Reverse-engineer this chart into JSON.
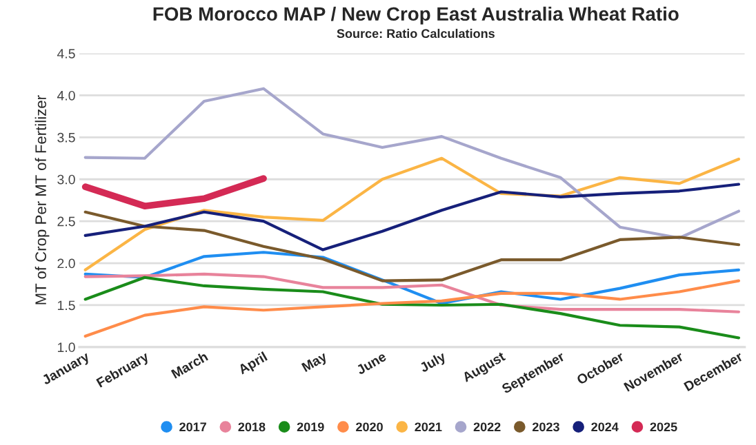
{
  "chart_data": {
    "type": "line",
    "title": "FOB Morocco MAP / New Crop East Australia Wheat Ratio",
    "subtitle": "Source: Ratio Calculations",
    "ylabel": "MT of Crop Per MT of Fertilizer",
    "categories": [
      "January",
      "February",
      "March",
      "April",
      "May",
      "June",
      "July",
      "August",
      "September",
      "October",
      "November",
      "December"
    ],
    "series": [
      {
        "name": "2017",
        "color": "#1f8ef1",
        "values": [
          1.87,
          1.83,
          2.08,
          2.13,
          2.07,
          1.8,
          1.52,
          1.66,
          1.57,
          1.7,
          1.86,
          1.92
        ]
      },
      {
        "name": "2018",
        "color": "#e8839b",
        "values": [
          1.84,
          1.85,
          1.87,
          1.84,
          1.71,
          1.71,
          1.74,
          1.5,
          1.45,
          1.45,
          1.45,
          1.42
        ]
      },
      {
        "name": "2019",
        "color": "#1a8c1a",
        "values": [
          1.57,
          1.83,
          1.73,
          1.69,
          1.66,
          1.51,
          1.5,
          1.51,
          1.4,
          1.26,
          1.24,
          1.11
        ]
      },
      {
        "name": "2020",
        "color": "#ff8c4a",
        "values": [
          1.13,
          1.38,
          1.48,
          1.44,
          1.48,
          1.52,
          1.55,
          1.64,
          1.64,
          1.57,
          1.66,
          1.79
        ]
      },
      {
        "name": "2021",
        "color": "#fbb545",
        "values": [
          1.92,
          2.4,
          2.63,
          2.55,
          2.51,
          3.0,
          3.25,
          2.83,
          2.8,
          3.02,
          2.95,
          3.24
        ]
      },
      {
        "name": "2022",
        "color": "#a6a6cc",
        "values": [
          3.26,
          3.25,
          3.93,
          4.08,
          3.54,
          3.38,
          3.51,
          3.25,
          3.02,
          2.43,
          2.3,
          2.62
        ]
      },
      {
        "name": "2023",
        "color": "#7a5a2c",
        "values": [
          2.61,
          2.44,
          2.39,
          2.2,
          2.05,
          1.79,
          1.8,
          2.04,
          2.04,
          2.28,
          2.31,
          2.22
        ]
      },
      {
        "name": "2024",
        "color": "#16207a",
        "values": [
          2.33,
          2.44,
          2.61,
          2.5,
          2.16,
          2.38,
          2.63,
          2.85,
          2.79,
          2.83,
          2.86,
          2.94
        ]
      },
      {
        "name": "2025",
        "color": "#d42a55",
        "values": [
          2.91,
          2.68,
          2.77,
          3.01,
          null,
          null,
          null,
          null,
          null,
          null,
          null,
          null
        ]
      }
    ],
    "ylim": [
      1.0,
      4.5
    ],
    "yticks": [
      {
        "value": 1.0,
        "label": "1.0"
      },
      {
        "value": 1.5,
        "label": "1.5"
      },
      {
        "value": 2.0,
        "label": "2.0"
      },
      {
        "value": 2.5,
        "label": "2.5"
      },
      {
        "value": 3.0,
        "label": "3.0"
      },
      {
        "value": 3.5,
        "label": "3.5"
      },
      {
        "value": 4.0,
        "label": "4.0"
      },
      {
        "value": 4.5,
        "label": "4.5"
      }
    ],
    "grid": "y",
    "legend": "bottom"
  }
}
